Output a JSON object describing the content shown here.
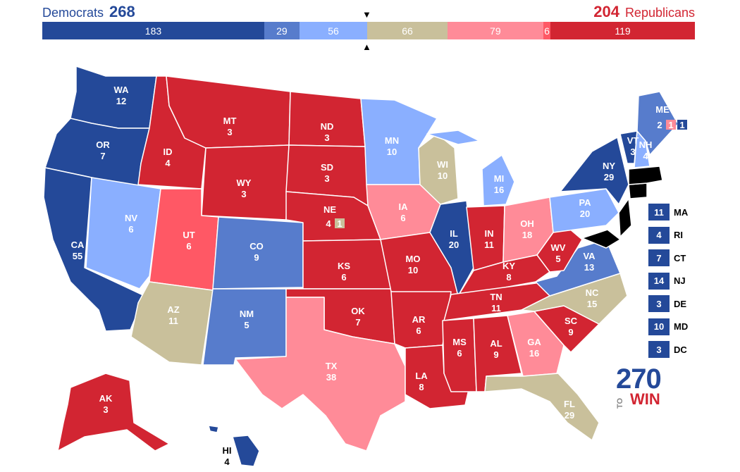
{
  "header": {
    "dem_label": "Democrats",
    "dem_total": "268",
    "rep_total": "204",
    "rep_label": "Republicans"
  },
  "arrows": {
    "down": "▼",
    "up": "▲"
  },
  "colors": {
    "safe_d": "#244999",
    "likely_d": "#577ccc",
    "lean_d": "#8aafff",
    "tossup": "#c9c09b",
    "lean_r": "#ff8b98",
    "likely_r": "#ff5865",
    "safe_r": "#d22532"
  },
  "bar": [
    {
      "value": 183,
      "label": "183",
      "rating": "safe_d"
    },
    {
      "value": 29,
      "label": "29",
      "rating": "likely_d"
    },
    {
      "value": 56,
      "label": "56",
      "rating": "lean_d"
    },
    {
      "value": 66,
      "label": "66",
      "rating": "tossup"
    },
    {
      "value": 79,
      "label": "79",
      "rating": "lean_r"
    },
    {
      "value": 6,
      "label": "6",
      "rating": "likely_r"
    },
    {
      "value": 119,
      "label": "119",
      "rating": "safe_r"
    }
  ],
  "states": {
    "WA": {
      "code": "WA",
      "ev": "12",
      "rating": "safe_d"
    },
    "OR": {
      "code": "OR",
      "ev": "7",
      "rating": "safe_d"
    },
    "CA": {
      "code": "CA",
      "ev": "55",
      "rating": "safe_d"
    },
    "NV": {
      "code": "NV",
      "ev": "6",
      "rating": "lean_d"
    },
    "ID": {
      "code": "ID",
      "ev": "4",
      "rating": "safe_r"
    },
    "MT": {
      "code": "MT",
      "ev": "3",
      "rating": "safe_r"
    },
    "WY": {
      "code": "WY",
      "ev": "3",
      "rating": "safe_r"
    },
    "UT": {
      "code": "UT",
      "ev": "6",
      "rating": "likely_r"
    },
    "AZ": {
      "code": "AZ",
      "ev": "11",
      "rating": "tossup"
    },
    "CO": {
      "code": "CO",
      "ev": "9",
      "rating": "likely_d"
    },
    "NM": {
      "code": "NM",
      "ev": "5",
      "rating": "likely_d"
    },
    "ND": {
      "code": "ND",
      "ev": "3",
      "rating": "safe_r"
    },
    "SD": {
      "code": "SD",
      "ev": "3",
      "rating": "safe_r"
    },
    "NE": {
      "code": "NE",
      "ev": "4",
      "ev2": "1",
      "rating": "safe_r"
    },
    "KS": {
      "code": "KS",
      "ev": "6",
      "rating": "safe_r"
    },
    "OK": {
      "code": "OK",
      "ev": "7",
      "rating": "safe_r"
    },
    "TX": {
      "code": "TX",
      "ev": "38",
      "rating": "lean_r"
    },
    "MN": {
      "code": "MN",
      "ev": "10",
      "rating": "lean_d"
    },
    "IA": {
      "code": "IA",
      "ev": "6",
      "rating": "lean_r"
    },
    "MO": {
      "code": "MO",
      "ev": "10",
      "rating": "safe_r"
    },
    "AR": {
      "code": "AR",
      "ev": "6",
      "rating": "safe_r"
    },
    "LA": {
      "code": "LA",
      "ev": "8",
      "rating": "safe_r"
    },
    "WI": {
      "code": "WI",
      "ev": "10",
      "rating": "tossup"
    },
    "IL": {
      "code": "IL",
      "ev": "20",
      "rating": "safe_d"
    },
    "MI": {
      "code": "MI",
      "ev": "16",
      "rating": "lean_d"
    },
    "IN": {
      "code": "IN",
      "ev": "11",
      "rating": "safe_r"
    },
    "OH": {
      "code": "OH",
      "ev": "18",
      "rating": "lean_r"
    },
    "KY": {
      "code": "KY",
      "ev": "8",
      "rating": "safe_r"
    },
    "TN": {
      "code": "TN",
      "ev": "11",
      "rating": "safe_r"
    },
    "MS": {
      "code": "MS",
      "ev": "6",
      "rating": "safe_r"
    },
    "AL": {
      "code": "AL",
      "ev": "9",
      "rating": "safe_r"
    },
    "GA": {
      "code": "GA",
      "ev": "16",
      "rating": "lean_r"
    },
    "FL": {
      "code": "FL",
      "ev": "29",
      "rating": "tossup"
    },
    "SC": {
      "code": "SC",
      "ev": "9",
      "rating": "safe_r"
    },
    "NC": {
      "code": "NC",
      "ev": "15",
      "rating": "tossup"
    },
    "VA": {
      "code": "VA",
      "ev": "13",
      "rating": "likely_d"
    },
    "WV": {
      "code": "WV",
      "ev": "5",
      "rating": "safe_r"
    },
    "PA": {
      "code": "PA",
      "ev": "20",
      "rating": "lean_d"
    },
    "NY": {
      "code": "NY",
      "ev": "29",
      "rating": "safe_d"
    },
    "VT": {
      "code": "VT",
      "ev": "3",
      "rating": "safe_d"
    },
    "NH": {
      "code": "NH",
      "ev": "4",
      "rating": "lean_d"
    },
    "ME": {
      "code": "ME",
      "ev": "2",
      "ev_d1": "1",
      "ev_d2": "1",
      "rating": "likely_d"
    },
    "AK": {
      "code": "AK",
      "ev": "3",
      "rating": "safe_r"
    },
    "HI": {
      "code": "HI",
      "ev": "4",
      "rating": "safe_d"
    }
  },
  "small_states": [
    {
      "code": "MA",
      "ev": "11"
    },
    {
      "code": "RI",
      "ev": "4"
    },
    {
      "code": "CT",
      "ev": "7"
    },
    {
      "code": "NJ",
      "ev": "14"
    },
    {
      "code": "DE",
      "ev": "3"
    },
    {
      "code": "MD",
      "ev": "10"
    },
    {
      "code": "DC",
      "ev": "3"
    }
  ],
  "logo": {
    "number": "270",
    "to": "TO",
    "win": "WIN"
  }
}
